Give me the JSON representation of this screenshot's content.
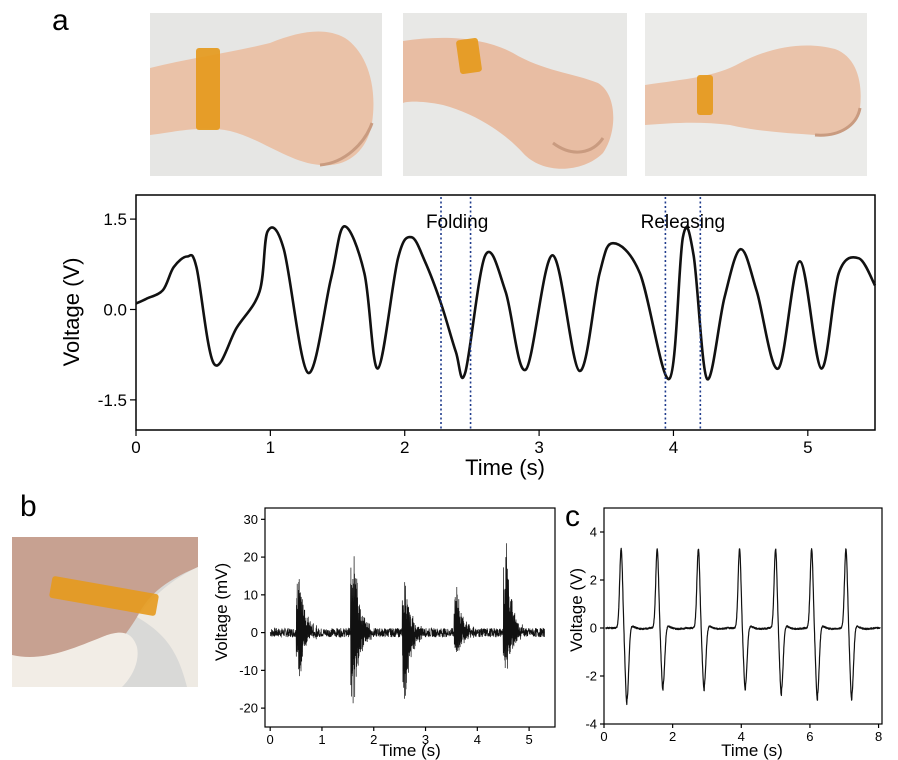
{
  "panels": {
    "a": "a",
    "b": "b",
    "c": "c"
  },
  "photos": {
    "wrist_flat": {
      "description_icon": "wrist-sensor-photo",
      "bg": "#e6e6e4",
      "skin": "#eac2a8",
      "tape": "#e59a1d"
    },
    "wrist_bent": {
      "description_icon": "wrist-sensor-photo",
      "bg": "#e8e8e6",
      "skin": "#e8bda3",
      "tape": "#e59a1d"
    },
    "wrist_back": {
      "description_icon": "wrist-sensor-photo",
      "bg": "#ebebe9",
      "skin": "#eac3aa",
      "tape": "#e59a1d"
    },
    "neck": {
      "description_icon": "neck-sensor-photo",
      "bg": "#d9d9d7",
      "skin": "#c7a191",
      "tape": "#e59a1d",
      "collar": "#f2ede6"
    }
  },
  "chart_data": [
    {
      "id": "a",
      "type": "line",
      "xlabel": "Time (s)",
      "ylabel": "Voltage (V)",
      "xlim": [
        0,
        5.5
      ],
      "ylim": [
        -2.0,
        1.9
      ],
      "xticks": [
        "0",
        "1",
        "2",
        "3",
        "4",
        "5"
      ],
      "xtick_values": [
        0,
        1,
        2,
        3,
        4,
        5
      ],
      "yticks": [
        "-1.5",
        "0.0",
        "1.5"
      ],
      "ytick_values": [
        -1.5,
        0,
        1.5
      ],
      "annotations": [
        {
          "text": "Folding",
          "x": 2.39,
          "y": 1.45,
          "vlines": [
            2.27,
            2.49
          ]
        },
        {
          "text": "Releasing",
          "x": 4.07,
          "y": 1.45,
          "vlines": [
            3.94,
            4.2
          ]
        }
      ],
      "series": [
        {
          "values_x": [
            0,
            0.08,
            0.2,
            0.28,
            0.38,
            0.45,
            0.58,
            0.75,
            0.92,
            0.98,
            1.1,
            1.28,
            1.45,
            1.55,
            1.7,
            1.8,
            1.95,
            2.05,
            2.15,
            2.27,
            2.38,
            2.45,
            2.6,
            2.75,
            2.9,
            3.1,
            3.3,
            3.45,
            3.55,
            3.75,
            3.97,
            4.07,
            4.15,
            4.25,
            4.38,
            4.5,
            4.62,
            4.78,
            4.94,
            5.1,
            5.23,
            5.38,
            5.5
          ],
          "values_y": [
            0.1,
            0.18,
            0.32,
            0.7,
            0.88,
            0.7,
            -0.9,
            -0.3,
            0.3,
            1.3,
            1.0,
            -1.05,
            0.5,
            1.38,
            0.6,
            -0.98,
            0.85,
            1.2,
            0.8,
            0.1,
            -0.7,
            -1.05,
            0.9,
            0.3,
            -1.0,
            0.9,
            -1.02,
            0.6,
            1.1,
            0.6,
            -1.15,
            1.2,
            0.9,
            -1.15,
            0.2,
            1.0,
            0.3,
            -0.98,
            0.8,
            -0.98,
            0.6,
            0.85,
            0.4
          ]
        }
      ]
    },
    {
      "id": "b",
      "type": "line",
      "xlabel": "Time (s)",
      "ylabel": "Voltage (mV)",
      "xlim": [
        -0.1,
        5.5
      ],
      "ylim": [
        -25,
        33
      ],
      "xticks": [
        "0",
        "1",
        "2",
        "3",
        "4",
        "5"
      ],
      "xtick_values": [
        0,
        1,
        2,
        3,
        4,
        5
      ],
      "yticks": [
        "-20",
        "-10",
        "0",
        "10",
        "20",
        "30"
      ],
      "ytick_values": [
        -20,
        -10,
        0,
        10,
        20,
        30
      ],
      "bursts": [
        {
          "t": 0.55,
          "max": 19,
          "min": -14
        },
        {
          "t": 1.6,
          "max": 27,
          "min": -23
        },
        {
          "t": 2.6,
          "max": 15,
          "min": -20
        },
        {
          "t": 3.6,
          "max": 13,
          "min": -7
        },
        {
          "t": 4.55,
          "max": 27,
          "min": -12
        }
      ],
      "noise_amplitude": 1.2
    },
    {
      "id": "c",
      "type": "line",
      "xlabel": "Time (s)",
      "ylabel": "Voltage (V)",
      "xlim": [
        0,
        8.1
      ],
      "ylim": [
        -4,
        5
      ],
      "xticks": [
        "0",
        "2",
        "4",
        "6",
        "8"
      ],
      "xtick_values": [
        0,
        2,
        4,
        6,
        8
      ],
      "yticks": [
        "-4",
        "-2",
        "0",
        "2",
        "4"
      ],
      "ytick_values": [
        -4,
        -2,
        0,
        2,
        4
      ],
      "pulses": [
        {
          "t": 0.5,
          "max": 3.3,
          "min": -3.2
        },
        {
          "t": 1.55,
          "max": 3.3,
          "min": -2.6
        },
        {
          "t": 2.75,
          "max": 3.3,
          "min": -2.6
        },
        {
          "t": 3.95,
          "max": 3.3,
          "min": -2.6
        },
        {
          "t": 5.0,
          "max": 3.3,
          "min": -2.8
        },
        {
          "t": 6.05,
          "max": 3.3,
          "min": -3.0
        },
        {
          "t": 7.05,
          "max": 3.3,
          "min": -3.0
        }
      ]
    }
  ]
}
